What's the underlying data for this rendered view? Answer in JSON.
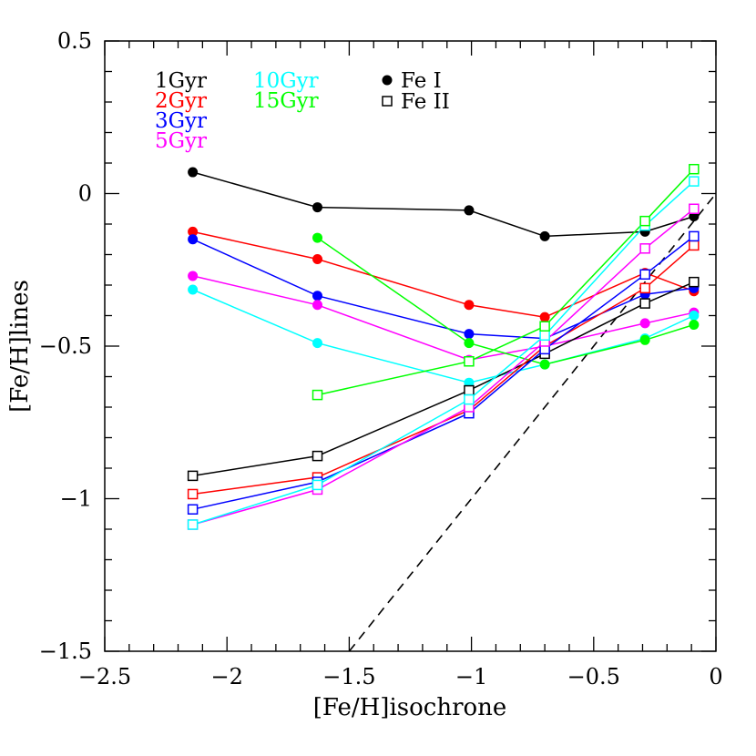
{
  "chart_data": {
    "type": "line",
    "xlabel": "[Fe/H]isochrone",
    "ylabel": "[Fe/H]lines",
    "xlim": [
      -2.5,
      0
    ],
    "ylim": [
      -1.5,
      0.5
    ],
    "xticks": [
      -2.5,
      -2,
      -1.5,
      -1,
      -0.5,
      0
    ],
    "yticks": [
      -1.5,
      -1,
      -0.5,
      0,
      0.5
    ],
    "xtick_labels": [
      "−2.5",
      "−2",
      "−1.5",
      "−1",
      "−0.5",
      "0"
    ],
    "ytick_labels": [
      "−1.5",
      "−1",
      "−0.5",
      "0",
      "0.5"
    ],
    "grid": false,
    "legend_position": "top-left",
    "legend_ages": [
      {
        "label": "1Gyr",
        "color": "#000000"
      },
      {
        "label": "2Gyr",
        "color": "#ff0000"
      },
      {
        "label": "3Gyr",
        "color": "#0000ff"
      },
      {
        "label": "5Gyr",
        "color": "#ff00ff"
      },
      {
        "label": "10Gyr",
        "color": "#00ffff"
      },
      {
        "label": "15Gyr",
        "color": "#00ff00"
      }
    ],
    "legend_markers": [
      {
        "label": "Fe I",
        "marker": "filled-circle"
      },
      {
        "label": "Fe II",
        "marker": "open-square"
      }
    ],
    "series": [
      {
        "age": "1Gyr",
        "ion": "Fe I",
        "color": "#000000",
        "marker": "filled-circle",
        "x": [
          -2.14,
          -1.63,
          -1.01,
          -0.7,
          -0.29,
          -0.09
        ],
        "y": [
          0.07,
          -0.045,
          -0.055,
          -0.14,
          -0.125,
          -0.075
        ]
      },
      {
        "age": "2Gyr",
        "ion": "Fe I",
        "color": "#ff0000",
        "marker": "filled-circle",
        "x": [
          -2.14,
          -1.63,
          -1.01,
          -0.7,
          -0.29,
          -0.09
        ],
        "y": [
          -0.125,
          -0.215,
          -0.365,
          -0.405,
          -0.26,
          -0.32
        ]
      },
      {
        "age": "3Gyr",
        "ion": "Fe I",
        "color": "#0000ff",
        "marker": "filled-circle",
        "x": [
          -2.14,
          -1.63,
          -1.01,
          -0.7,
          -0.29,
          -0.09
        ],
        "y": [
          -0.15,
          -0.335,
          -0.46,
          -0.475,
          -0.33,
          -0.31
        ]
      },
      {
        "age": "5Gyr",
        "ion": "Fe I",
        "color": "#ff00ff",
        "marker": "filled-circle",
        "x": [
          -2.14,
          -1.63,
          -1.01,
          -0.7,
          -0.29,
          -0.09
        ],
        "y": [
          -0.27,
          -0.365,
          -0.545,
          -0.5,
          -0.425,
          -0.39
        ]
      },
      {
        "age": "10Gyr",
        "ion": "Fe I",
        "color": "#00ffff",
        "marker": "filled-circle",
        "x": [
          -2.14,
          -1.63,
          -1.01,
          -0.7,
          -0.29,
          -0.09
        ],
        "y": [
          -0.315,
          -0.49,
          -0.62,
          -0.56,
          -0.475,
          -0.4
        ]
      },
      {
        "age": "15Gyr",
        "ion": "Fe I",
        "color": "#00ff00",
        "marker": "filled-circle",
        "x": [
          -1.63,
          -1.01,
          -0.7,
          -0.29,
          -0.09
        ],
        "y": [
          -0.145,
          -0.49,
          -0.56,
          -0.48,
          -0.43
        ]
      },
      {
        "age": "1Gyr",
        "ion": "Fe II",
        "color": "#000000",
        "marker": "open-square",
        "x": [
          -2.14,
          -1.63,
          -1.01,
          -0.7,
          -0.29,
          -0.09
        ],
        "y": [
          -0.925,
          -0.86,
          -0.645,
          -0.525,
          -0.36,
          -0.29
        ]
      },
      {
        "age": "2Gyr",
        "ion": "Fe II",
        "color": "#ff0000",
        "marker": "open-square",
        "x": [
          -2.14,
          -1.63,
          -1.01,
          -0.7,
          -0.29,
          -0.09
        ],
        "y": [
          -0.985,
          -0.93,
          -0.71,
          -0.5,
          -0.31,
          -0.17
        ]
      },
      {
        "age": "3Gyr",
        "ion": "Fe II",
        "color": "#0000ff",
        "marker": "open-square",
        "x": [
          -2.14,
          -1.63,
          -1.01,
          -0.7,
          -0.29,
          -0.09
        ],
        "y": [
          -1.035,
          -0.945,
          -0.72,
          -0.51,
          -0.265,
          -0.14
        ]
      },
      {
        "age": "5Gyr",
        "ion": "Fe II",
        "color": "#ff00ff",
        "marker": "open-square",
        "x": [
          -2.14,
          -1.63,
          -1.01,
          -0.7,
          -0.29,
          -0.09
        ],
        "y": [
          -1.085,
          -0.97,
          -0.7,
          -0.485,
          -0.18,
          -0.05
        ]
      },
      {
        "age": "10Gyr",
        "ion": "Fe II",
        "color": "#00ffff",
        "marker": "open-square",
        "x": [
          -2.14,
          -1.63,
          -1.01,
          -0.7,
          -0.29,
          -0.09
        ],
        "y": [
          -1.085,
          -0.955,
          -0.675,
          -0.465,
          -0.105,
          0.04
        ]
      },
      {
        "age": "15Gyr",
        "ion": "Fe II",
        "color": "#00ff00",
        "marker": "open-square",
        "x": [
          -1.63,
          -1.01,
          -0.7,
          -0.29,
          -0.09
        ],
        "y": [
          -0.66,
          -0.55,
          -0.435,
          -0.09,
          0.08
        ]
      }
    ],
    "reference_line": {
      "style": "dashed",
      "color": "#000000",
      "x": [
        -1.5,
        0
      ],
      "y": [
        -1.5,
        0
      ]
    }
  }
}
